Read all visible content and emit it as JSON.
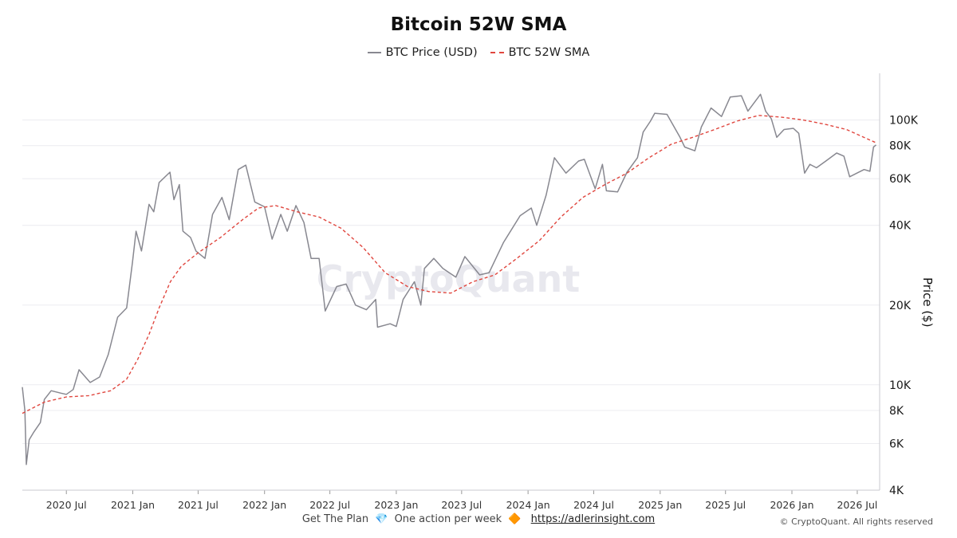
{
  "chart_data": {
    "type": "line",
    "title": "Bitcoin 52W SMA",
    "ylabel": "Price ($)",
    "y_scale": "log",
    "ylim": [
      4000,
      150000
    ],
    "xlim": [
      "2020-03-01",
      "2026-09-01"
    ],
    "y_ticks": [
      {
        "value": 4000,
        "label": "4K"
      },
      {
        "value": 6000,
        "label": "6K"
      },
      {
        "value": 8000,
        "label": "8K"
      },
      {
        "value": 10000,
        "label": "10K"
      },
      {
        "value": 20000,
        "label": "20K"
      },
      {
        "value": 40000,
        "label": "40K"
      },
      {
        "value": 60000,
        "label": "60K"
      },
      {
        "value": 80000,
        "label": "80K"
      },
      {
        "value": 100000,
        "label": "100K"
      }
    ],
    "x_ticks": [
      {
        "value": "2020-07-01",
        "label": "2020 Jul"
      },
      {
        "value": "2021-01-01",
        "label": "2021 Jan"
      },
      {
        "value": "2021-07-01",
        "label": "2021 Jul"
      },
      {
        "value": "2022-01-01",
        "label": "2022 Jan"
      },
      {
        "value": "2022-07-01",
        "label": "2022 Jul"
      },
      {
        "value": "2023-01-01",
        "label": "2023 Jan"
      },
      {
        "value": "2023-07-01",
        "label": "2023 Jul"
      },
      {
        "value": "2024-01-01",
        "label": "2024 Jan"
      },
      {
        "value": "2024-07-01",
        "label": "2024 Jul"
      },
      {
        "value": "2025-01-01",
        "label": "2025 Jan"
      },
      {
        "value": "2025-07-01",
        "label": "2025 Jul"
      },
      {
        "value": "2026-01-01",
        "label": "2026 Jan"
      },
      {
        "value": "2026-07-01",
        "label": "2026 Jul"
      }
    ],
    "grid": true,
    "legend_position": "top-center",
    "series": [
      {
        "name": "BTC Price (USD)",
        "color": "#888890",
        "style": "solid",
        "points": [
          [
            "2020-03-01",
            9800
          ],
          [
            "2020-03-08",
            8000
          ],
          [
            "2020-03-12",
            5000
          ],
          [
            "2020-03-20",
            6200
          ],
          [
            "2020-04-01",
            6600
          ],
          [
            "2020-04-20",
            7200
          ],
          [
            "2020-05-01",
            8800
          ],
          [
            "2020-05-20",
            9500
          ],
          [
            "2020-06-15",
            9300
          ],
          [
            "2020-07-01",
            9200
          ],
          [
            "2020-07-20",
            9600
          ],
          [
            "2020-08-05",
            11400
          ],
          [
            "2020-09-05",
            10200
          ],
          [
            "2020-10-01",
            10700
          ],
          [
            "2020-10-25",
            13000
          ],
          [
            "2020-11-20",
            18000
          ],
          [
            "2020-12-15",
            19500
          ],
          [
            "2020-12-31",
            29000
          ],
          [
            "2021-01-10",
            38000
          ],
          [
            "2021-01-25",
            32000
          ],
          [
            "2021-02-15",
            48000
          ],
          [
            "2021-02-28",
            45000
          ],
          [
            "2021-03-15",
            58000
          ],
          [
            "2021-04-14",
            63500
          ],
          [
            "2021-04-25",
            50000
          ],
          [
            "2021-05-10",
            57000
          ],
          [
            "2021-05-20",
            38000
          ],
          [
            "2021-06-10",
            36000
          ],
          [
            "2021-06-25",
            32000
          ],
          [
            "2021-07-20",
            30000
          ],
          [
            "2021-08-10",
            44000
          ],
          [
            "2021-09-05",
            51000
          ],
          [
            "2021-09-25",
            42000
          ],
          [
            "2021-10-20",
            65000
          ],
          [
            "2021-11-10",
            67500
          ],
          [
            "2021-12-05",
            49000
          ],
          [
            "2022-01-01",
            47000
          ],
          [
            "2022-01-22",
            35500
          ],
          [
            "2022-02-15",
            44000
          ],
          [
            "2022-03-05",
            38000
          ],
          [
            "2022-03-29",
            47500
          ],
          [
            "2022-04-20",
            41000
          ],
          [
            "2022-05-10",
            30000
          ],
          [
            "2022-06-01",
            30000
          ],
          [
            "2022-06-18",
            19000
          ],
          [
            "2022-07-20",
            23500
          ],
          [
            "2022-08-15",
            24000
          ],
          [
            "2022-09-10",
            20000
          ],
          [
            "2022-10-10",
            19200
          ],
          [
            "2022-11-05",
            21000
          ],
          [
            "2022-11-10",
            16500
          ],
          [
            "2022-12-15",
            17000
          ],
          [
            "2023-01-01",
            16600
          ],
          [
            "2023-01-20",
            21000
          ],
          [
            "2023-02-20",
            24500
          ],
          [
            "2023-03-10",
            20000
          ],
          [
            "2023-03-20",
            27500
          ],
          [
            "2023-04-15",
            30000
          ],
          [
            "2023-05-10",
            27500
          ],
          [
            "2023-06-15",
            25500
          ],
          [
            "2023-07-10",
            30500
          ],
          [
            "2023-08-20",
            26000
          ],
          [
            "2023-09-15",
            26500
          ],
          [
            "2023-10-25",
            34500
          ],
          [
            "2023-12-10",
            43500
          ],
          [
            "2024-01-10",
            46500
          ],
          [
            "2024-01-25",
            40000
          ],
          [
            "2024-02-20",
            52000
          ],
          [
            "2024-03-14",
            72000
          ],
          [
            "2024-04-15",
            63000
          ],
          [
            "2024-05-20",
            70000
          ],
          [
            "2024-06-05",
            71000
          ],
          [
            "2024-07-05",
            55000
          ],
          [
            "2024-07-25",
            68000
          ],
          [
            "2024-08-05",
            54000
          ],
          [
            "2024-09-05",
            53500
          ],
          [
            "2024-10-01",
            63500
          ],
          [
            "2024-10-30",
            72000
          ],
          [
            "2024-11-15",
            90000
          ],
          [
            "2024-12-05",
            99000
          ],
          [
            "2024-12-17",
            106000
          ],
          [
            "2025-01-20",
            105000
          ],
          [
            "2025-02-25",
            86000
          ],
          [
            "2025-03-10",
            79000
          ],
          [
            "2025-04-07",
            76500
          ],
          [
            "2025-04-25",
            94000
          ],
          [
            "2025-05-22",
            111000
          ],
          [
            "2025-06-20",
            103000
          ],
          [
            "2025-07-14",
            122000
          ],
          [
            "2025-08-14",
            123500
          ],
          [
            "2025-09-01",
            108000
          ],
          [
            "2025-10-06",
            125000
          ],
          [
            "2025-10-20",
            108000
          ],
          [
            "2025-11-05",
            101000
          ],
          [
            "2025-11-20",
            86000
          ],
          [
            "2025-12-10",
            92000
          ],
          [
            "2026-01-05",
            93000
          ],
          [
            "2026-01-20",
            89000
          ],
          [
            "2026-02-05",
            63000
          ],
          [
            "2026-02-20",
            68000
          ],
          [
            "2026-03-10",
            66000
          ],
          [
            "2026-04-05",
            70000
          ],
          [
            "2026-05-05",
            75000
          ],
          [
            "2026-05-25",
            73000
          ],
          [
            "2026-06-10",
            61000
          ],
          [
            "2026-06-30",
            63000
          ],
          [
            "2026-07-20",
            65000
          ],
          [
            "2026-08-05",
            64000
          ],
          [
            "2026-08-15",
            79000
          ],
          [
            "2026-08-22",
            80500
          ]
        ]
      },
      {
        "name": "BTC 52W SMA",
        "color": "#e0463e",
        "style": "dashed",
        "points": [
          [
            "2020-03-01",
            7800
          ],
          [
            "2020-05-01",
            8600
          ],
          [
            "2020-07-01",
            9000
          ],
          [
            "2020-09-01",
            9100
          ],
          [
            "2020-11-01",
            9500
          ],
          [
            "2020-12-15",
            10500
          ],
          [
            "2021-01-15",
            12500
          ],
          [
            "2021-02-15",
            15500
          ],
          [
            "2021-03-15",
            19500
          ],
          [
            "2021-04-15",
            24500
          ],
          [
            "2021-05-15",
            28000
          ],
          [
            "2021-07-01",
            31500
          ],
          [
            "2021-09-01",
            36000
          ],
          [
            "2021-11-01",
            42000
          ],
          [
            "2021-12-15",
            46500
          ],
          [
            "2022-02-01",
            47500
          ],
          [
            "2022-04-01",
            45000
          ],
          [
            "2022-06-01",
            43000
          ],
          [
            "2022-08-01",
            39000
          ],
          [
            "2022-10-01",
            33000
          ],
          [
            "2022-12-01",
            26500
          ],
          [
            "2023-02-01",
            23500
          ],
          [
            "2023-04-01",
            22500
          ],
          [
            "2023-06-01",
            22200
          ],
          [
            "2023-08-01",
            24500
          ],
          [
            "2023-10-01",
            26000
          ],
          [
            "2023-12-01",
            30000
          ],
          [
            "2024-02-01",
            35000
          ],
          [
            "2024-04-01",
            43000
          ],
          [
            "2024-06-01",
            51000
          ],
          [
            "2024-08-01",
            57000
          ],
          [
            "2024-10-01",
            63000
          ],
          [
            "2024-12-01",
            72000
          ],
          [
            "2025-02-01",
            81000
          ],
          [
            "2025-04-01",
            86000
          ],
          [
            "2025-06-01",
            92000
          ],
          [
            "2025-08-01",
            99000
          ],
          [
            "2025-10-01",
            104000
          ],
          [
            "2025-12-01",
            102500
          ],
          [
            "2026-02-01",
            100000
          ],
          [
            "2026-04-01",
            96500
          ],
          [
            "2026-06-01",
            92000
          ],
          [
            "2026-08-22",
            82000
          ]
        ]
      }
    ]
  },
  "footer": {
    "text_before": "Get The Plan",
    "gem": "💎",
    "text_middle": "One action per week",
    "diamond": "🔶",
    "link": "https://adlerinsight.com"
  },
  "copyright": "© CryptoQuant. All rights reserved",
  "watermark": "CryptoQuant"
}
